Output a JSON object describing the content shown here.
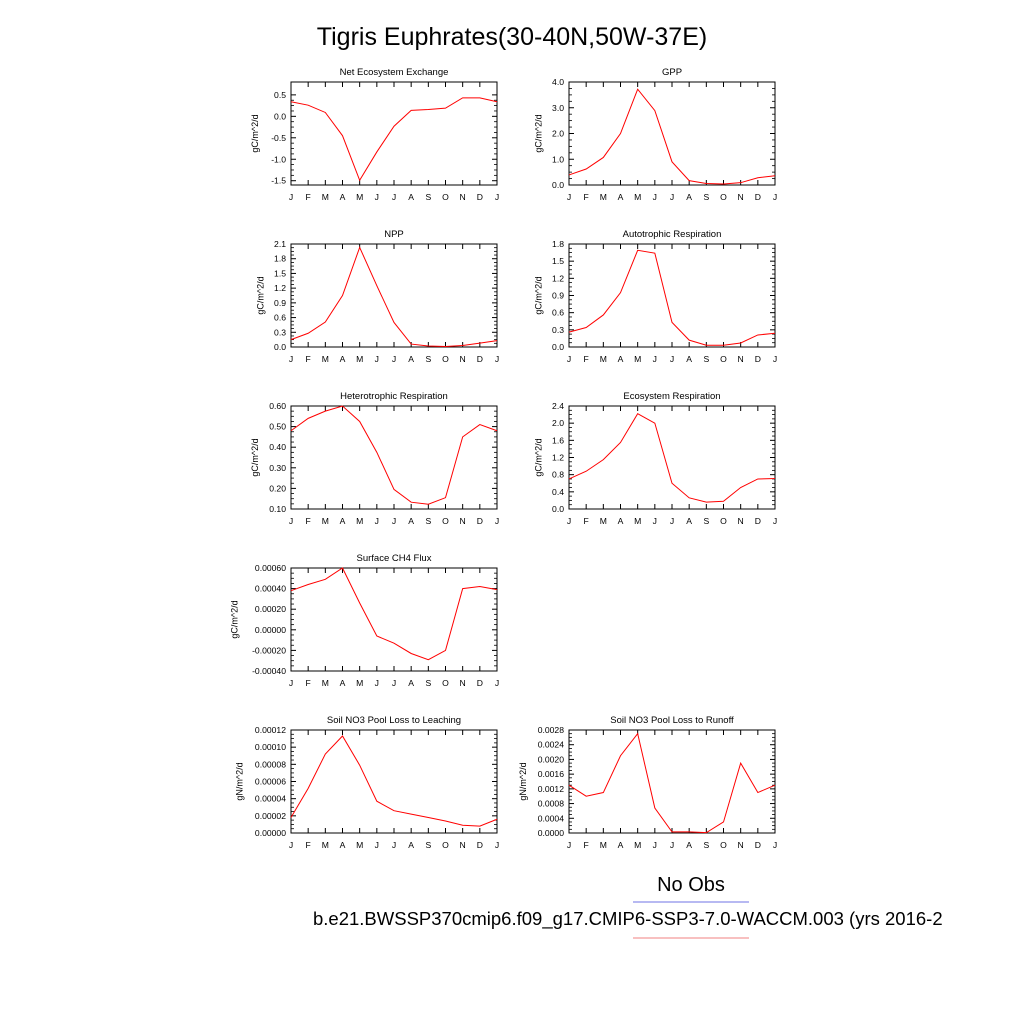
{
  "page": {
    "title": "Tigris Euphrates(30-40N,50W-37E)",
    "legend_label": "No Obs",
    "caption": "b.e21.BWSSP370cmip6.f09_g17.CMIP6-SSP3-7.0-WACCM.003 (yrs 2016-2",
    "obs_line_color": "#6f73e6",
    "model_line_color": "#f08080",
    "series_color": "#ff0000"
  },
  "chart_data": [
    {
      "type": "line",
      "title": "Net Ecosystem Exchange",
      "ylabel": "gC/m^2/d",
      "categories": [
        "J",
        "F",
        "M",
        "A",
        "M",
        "J",
        "J",
        "A",
        "S",
        "O",
        "N",
        "D",
        "J"
      ],
      "values": [
        0.34,
        0.26,
        0.09,
        -0.45,
        -1.49,
        -0.83,
        -0.23,
        0.14,
        0.16,
        0.19,
        0.43,
        0.43,
        0.34
      ],
      "ylim": [
        -1.6,
        0.8
      ],
      "yticks": [
        0.5,
        0.0,
        -0.5,
        -1.0,
        -1.5
      ],
      "ytick_labels": [
        "0.5",
        "0.0",
        "-0.5",
        "-1.0",
        "-1.5"
      ]
    },
    {
      "type": "line",
      "title": "GPP",
      "ylabel": "gC/m^2/d",
      "categories": [
        "J",
        "F",
        "M",
        "A",
        "M",
        "J",
        "J",
        "A",
        "S",
        "O",
        "N",
        "D",
        "J"
      ],
      "values": [
        0.39,
        0.62,
        1.07,
        2.0,
        3.72,
        2.89,
        0.9,
        0.17,
        0.06,
        0.04,
        0.09,
        0.28,
        0.36
      ],
      "ylim": [
        0.0,
        4.0
      ],
      "yticks": [
        4.0,
        3.0,
        2.0,
        1.0,
        0.0
      ],
      "ytick_labels": [
        "4.0",
        "3.0",
        "2.0",
        "1.0",
        "0.0"
      ]
    },
    {
      "type": "line",
      "title": "NPP",
      "ylabel": "gC/m^2/d",
      "categories": [
        "J",
        "F",
        "M",
        "A",
        "M",
        "J",
        "J",
        "A",
        "S",
        "O",
        "N",
        "D",
        "J"
      ],
      "values": [
        0.15,
        0.28,
        0.51,
        1.05,
        2.03,
        1.25,
        0.5,
        0.06,
        0.02,
        0.01,
        0.03,
        0.08,
        0.13
      ],
      "ylim": [
        0.0,
        2.1
      ],
      "yticks": [
        2.1,
        1.8,
        1.5,
        1.2,
        0.9,
        0.6,
        0.3,
        0.0
      ],
      "ytick_labels": [
        "2.1",
        "1.8",
        "1.5",
        "1.2",
        "0.9",
        "0.6",
        "0.3",
        "0.0"
      ]
    },
    {
      "type": "line",
      "title": "Autotrophic Respiration",
      "ylabel": "gC/m^2/d",
      "categories": [
        "J",
        "F",
        "M",
        "A",
        "M",
        "J",
        "J",
        "A",
        "S",
        "O",
        "N",
        "D",
        "J"
      ],
      "values": [
        0.26,
        0.34,
        0.56,
        0.95,
        1.69,
        1.64,
        0.43,
        0.12,
        0.03,
        0.03,
        0.07,
        0.21,
        0.24
      ],
      "ylim": [
        0.0,
        1.8
      ],
      "yticks": [
        1.8,
        1.5,
        1.2,
        0.9,
        0.6,
        0.3,
        0.0
      ],
      "ytick_labels": [
        "1.8",
        "1.5",
        "1.2",
        "0.9",
        "0.6",
        "0.3",
        "0.0"
      ]
    },
    {
      "type": "line",
      "title": "Heterotrophic Respiration",
      "ylabel": "gC/m^2/d",
      "categories": [
        "J",
        "F",
        "M",
        "A",
        "M",
        "J",
        "J",
        "A",
        "S",
        "O",
        "N",
        "D",
        "J"
      ],
      "values": [
        0.48,
        0.54,
        0.575,
        0.6,
        0.525,
        0.375,
        0.195,
        0.133,
        0.123,
        0.155,
        0.45,
        0.51,
        0.48
      ],
      "ylim": [
        0.1,
        0.6
      ],
      "yticks": [
        0.6,
        0.5,
        0.4,
        0.3,
        0.2,
        0.1
      ],
      "ytick_labels": [
        "0.60",
        "0.50",
        "0.40",
        "0.30",
        "0.20",
        "0.10"
      ]
    },
    {
      "type": "line",
      "title": "Ecosystem Respiration",
      "ylabel": "gC/m^2/d",
      "categories": [
        "J",
        "F",
        "M",
        "A",
        "M",
        "J",
        "J",
        "A",
        "S",
        "O",
        "N",
        "D",
        "J"
      ],
      "values": [
        0.7,
        0.88,
        1.15,
        1.55,
        2.22,
        2.0,
        0.6,
        0.26,
        0.16,
        0.18,
        0.5,
        0.7,
        0.71
      ],
      "ylim": [
        0.0,
        2.4
      ],
      "yticks": [
        2.4,
        2.0,
        1.6,
        1.2,
        0.8,
        0.4,
        0.0
      ],
      "ytick_labels": [
        "2.4",
        "2.0",
        "1.6",
        "1.2",
        "0.8",
        "0.4",
        "0.0"
      ]
    },
    {
      "type": "line",
      "title": "Surface CH4 Flux",
      "ylabel": "gC/m^2/d",
      "categories": [
        "J",
        "F",
        "M",
        "A",
        "M",
        "J",
        "J",
        "A",
        "S",
        "O",
        "N",
        "D",
        "J"
      ],
      "values": [
        0.00038,
        0.00044,
        0.00049,
        0.0006,
        0.00026,
        -6e-05,
        -0.00013,
        -0.00023,
        -0.00029,
        -0.0002,
        0.0004,
        0.00042,
        0.00039
      ],
      "ylim": [
        -0.0004,
        0.0006
      ],
      "yticks": [
        0.0006,
        0.0004,
        0.0002,
        0.0,
        -0.0002,
        -0.0004
      ],
      "ytick_labels": [
        "0.00060",
        "0.00040",
        "0.00020",
        "0.00000",
        "-0.00020",
        "-0.00040"
      ]
    },
    {
      "type": "line",
      "title": "Soil NO3 Pool Loss to Leaching",
      "ylabel": "gN/m^2/d",
      "categories": [
        "J",
        "F",
        "M",
        "A",
        "M",
        "J",
        "J",
        "A",
        "S",
        "O",
        "N",
        "D",
        "J"
      ],
      "values": [
        1.8e-05,
        5.2e-05,
        9.2e-05,
        0.000113,
        7.9e-05,
        3.7e-05,
        2.6e-05,
        2.2e-05,
        1.8e-05,
        1.4e-05,
        9e-06,
        8e-06,
        1.6e-05
      ],
      "ylim": [
        0.0,
        0.00012
      ],
      "yticks": [
        0.00012,
        0.0001,
        8e-05,
        6e-05,
        4e-05,
        2e-05,
        0.0
      ],
      "ytick_labels": [
        "0.00012",
        "0.00010",
        "0.00008",
        "0.00006",
        "0.00004",
        "0.00002",
        "0.00000"
      ]
    },
    {
      "type": "line",
      "title": "Soil NO3 Pool Loss to Runoff",
      "ylabel": "gN/m^2/d",
      "categories": [
        "J",
        "F",
        "M",
        "A",
        "M",
        "J",
        "J",
        "A",
        "S",
        "O",
        "N",
        "D",
        "J"
      ],
      "values": [
        0.0013,
        0.001,
        0.0011,
        0.0021,
        0.0027,
        0.00068,
        3e-05,
        3e-05,
        1e-05,
        0.0003,
        0.0019,
        0.0011,
        0.0013
      ],
      "ylim": [
        0.0,
        0.0028
      ],
      "yticks": [
        0.0028,
        0.0024,
        0.002,
        0.0016,
        0.0012,
        0.0008,
        0.0004,
        0.0
      ],
      "ytick_labels": [
        "0.0028",
        "0.0024",
        "0.0020",
        "0.0016",
        "0.0012",
        "0.0008",
        "0.0004",
        "0.0000"
      ]
    }
  ]
}
